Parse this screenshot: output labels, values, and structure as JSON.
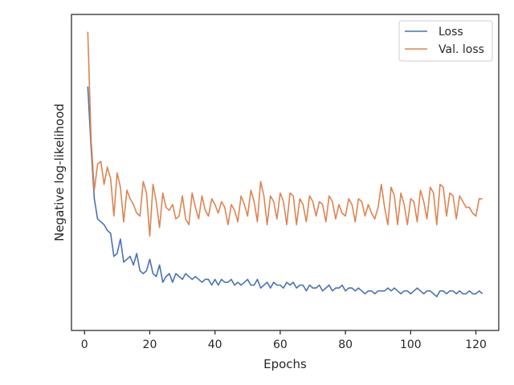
{
  "chart_data": {
    "type": "line",
    "title": "",
    "xlabel": "Epochs",
    "ylabel": "Negative log-likelihood",
    "xlim": [
      -4,
      127
    ],
    "ylim": [
      0.0,
      1.0
    ],
    "xticks": [
      0,
      20,
      40,
      60,
      80,
      100,
      120
    ],
    "yticks_visible": false,
    "grid": false,
    "legend": "top-right",
    "colors": {
      "Loss": "#4c72b0",
      "Val. loss": "#dd8452"
    },
    "x": [
      1,
      2,
      3,
      4,
      5,
      6,
      7,
      8,
      9,
      10,
      11,
      12,
      13,
      14,
      15,
      16,
      17,
      18,
      19,
      20,
      21,
      22,
      23,
      24,
      25,
      26,
      27,
      28,
      29,
      30,
      31,
      32,
      33,
      34,
      35,
      36,
      37,
      38,
      39,
      40,
      41,
      42,
      43,
      44,
      45,
      46,
      47,
      48,
      49,
      50,
      51,
      52,
      53,
      54,
      55,
      56,
      57,
      58,
      59,
      60,
      61,
      62,
      63,
      64,
      65,
      66,
      67,
      68,
      69,
      70,
      71,
      72,
      73,
      74,
      75,
      76,
      77,
      78,
      79,
      80,
      81,
      82,
      83,
      84,
      85,
      86,
      87,
      88,
      89,
      90,
      91,
      92,
      93,
      94,
      95,
      96,
      97,
      98,
      99,
      100,
      101,
      102,
      103,
      104,
      105,
      106,
      107,
      108,
      109,
      110,
      111,
      112,
      113,
      114,
      115,
      116,
      117,
      118,
      119,
      120,
      121,
      122
    ],
    "series": [
      {
        "name": "Loss",
        "values": [
          0.8,
          0.59,
          0.41,
          0.34,
          0.33,
          0.32,
          0.3,
          0.29,
          0.21,
          0.22,
          0.27,
          0.19,
          0.2,
          0.21,
          0.18,
          0.22,
          0.16,
          0.15,
          0.16,
          0.2,
          0.15,
          0.14,
          0.18,
          0.12,
          0.14,
          0.15,
          0.12,
          0.15,
          0.14,
          0.13,
          0.15,
          0.14,
          0.13,
          0.14,
          0.13,
          0.12,
          0.13,
          0.13,
          0.11,
          0.13,
          0.11,
          0.13,
          0.12,
          0.12,
          0.13,
          0.11,
          0.12,
          0.11,
          0.12,
          0.13,
          0.11,
          0.11,
          0.13,
          0.1,
          0.11,
          0.12,
          0.1,
          0.12,
          0.11,
          0.11,
          0.1,
          0.12,
          0.11,
          0.12,
          0.1,
          0.11,
          0.11,
          0.09,
          0.11,
          0.1,
          0.1,
          0.11,
          0.09,
          0.1,
          0.11,
          0.09,
          0.1,
          0.1,
          0.11,
          0.09,
          0.1,
          0.1,
          0.09,
          0.1,
          0.09,
          0.08,
          0.09,
          0.09,
          0.08,
          0.09,
          0.09,
          0.09,
          0.1,
          0.09,
          0.1,
          0.09,
          0.08,
          0.09,
          0.09,
          0.08,
          0.09,
          0.1,
          0.09,
          0.08,
          0.09,
          0.09,
          0.08,
          0.07,
          0.09,
          0.09,
          0.08,
          0.09,
          0.09,
          0.08,
          0.09,
          0.08,
          0.08,
          0.09,
          0.08,
          0.08,
          0.09,
          0.08
        ],
        "color": "#4c72b0"
      },
      {
        "name": "Val. loss",
        "values": [
          0.99,
          0.62,
          0.44,
          0.53,
          0.54,
          0.46,
          0.52,
          0.48,
          0.35,
          0.5,
          0.45,
          0.33,
          0.44,
          0.41,
          0.39,
          0.36,
          0.35,
          0.47,
          0.43,
          0.28,
          0.46,
          0.4,
          0.31,
          0.43,
          0.38,
          0.37,
          0.39,
          0.34,
          0.35,
          0.42,
          0.34,
          0.32,
          0.43,
          0.38,
          0.34,
          0.42,
          0.37,
          0.35,
          0.41,
          0.39,
          0.36,
          0.4,
          0.38,
          0.32,
          0.39,
          0.37,
          0.33,
          0.42,
          0.39,
          0.35,
          0.44,
          0.4,
          0.33,
          0.47,
          0.42,
          0.32,
          0.42,
          0.4,
          0.34,
          0.43,
          0.4,
          0.32,
          0.43,
          0.42,
          0.32,
          0.41,
          0.39,
          0.33,
          0.42,
          0.4,
          0.35,
          0.4,
          0.39,
          0.33,
          0.42,
          0.4,
          0.34,
          0.39,
          0.36,
          0.35,
          0.41,
          0.39,
          0.33,
          0.41,
          0.4,
          0.35,
          0.39,
          0.36,
          0.34,
          0.38,
          0.46,
          0.38,
          0.32,
          0.45,
          0.42,
          0.32,
          0.43,
          0.39,
          0.32,
          0.41,
          0.4,
          0.33,
          0.44,
          0.4,
          0.34,
          0.45,
          0.43,
          0.32,
          0.46,
          0.45,
          0.35,
          0.43,
          0.42,
          0.34,
          0.42,
          0.4,
          0.38,
          0.38,
          0.36,
          0.35,
          0.41,
          0.41
        ],
        "color": "#dd8452"
      }
    ]
  }
}
